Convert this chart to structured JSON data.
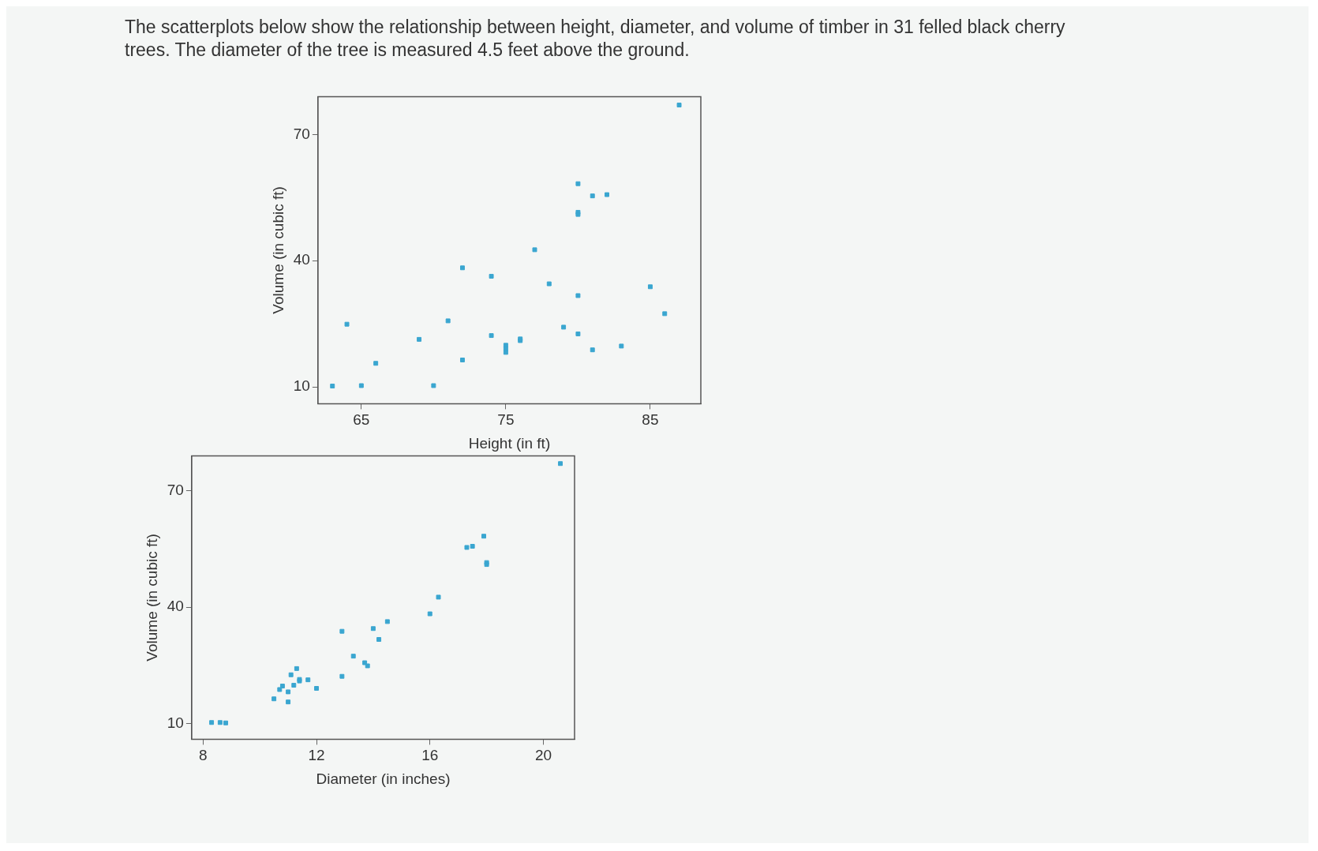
{
  "chart_data": [
    {
      "type": "scatter",
      "title": "The scatterplots below show the relationship between height, diameter, and volume of timber in 31 felled black cherry trees. The diameter of the tree is measured 4.5 feet above the ground.",
      "xlabel": "Height (in ft)",
      "ylabel": "Volume (in cubic ft)",
      "color": "#3aa6d0",
      "marker": "square",
      "x": [
        70,
        65,
        63,
        72,
        81,
        83,
        66,
        75,
        80,
        75,
        79,
        76,
        76,
        69,
        75,
        74,
        85,
        86,
        71,
        64,
        78,
        80,
        74,
        72,
        77,
        81,
        82,
        80,
        80,
        80,
        87
      ],
      "values": [
        10.3,
        10.3,
        10.2,
        16.4,
        18.8,
        19.7,
        15.6,
        18.2,
        22.6,
        19.9,
        24.2,
        21.0,
        21.4,
        21.3,
        19.1,
        22.2,
        33.8,
        27.4,
        25.7,
        24.9,
        34.5,
        31.7,
        36.3,
        38.3,
        42.6,
        55.4,
        55.7,
        58.3,
        51.5,
        51.0,
        77.0
      ],
      "xlim": [
        62,
        88.5
      ],
      "xticks": [
        65,
        75,
        85
      ],
      "ylim": [
        6,
        79
      ],
      "yticks": [
        10,
        40,
        70
      ]
    },
    {
      "type": "scatter",
      "xlabel": "Diameter (in inches)",
      "ylabel": "Volume (in cubic ft)",
      "color": "#3aa6d0",
      "marker": "square",
      "x": [
        8.3,
        8.6,
        8.8,
        10.5,
        10.7,
        10.8,
        11.0,
        11.0,
        11.1,
        11.2,
        11.3,
        11.4,
        11.4,
        11.7,
        12.0,
        12.9,
        12.9,
        13.3,
        13.7,
        13.8,
        14.0,
        14.2,
        14.5,
        16.0,
        16.3,
        17.3,
        17.5,
        17.9,
        18.0,
        18.0,
        20.6
      ],
      "values": [
        10.3,
        10.3,
        10.2,
        16.4,
        18.8,
        19.7,
        15.6,
        18.2,
        22.6,
        19.9,
        24.2,
        21.0,
        21.4,
        21.3,
        19.1,
        22.2,
        33.8,
        27.4,
        25.7,
        24.9,
        34.5,
        31.7,
        36.3,
        38.3,
        42.6,
        55.4,
        55.7,
        58.3,
        51.5,
        51.0,
        77.0
      ],
      "xlim": [
        7.6,
        21.1
      ],
      "xticks": [
        8,
        12,
        16,
        20
      ],
      "ylim": [
        6,
        79
      ],
      "yticks": [
        10,
        40,
        70
      ]
    }
  ]
}
